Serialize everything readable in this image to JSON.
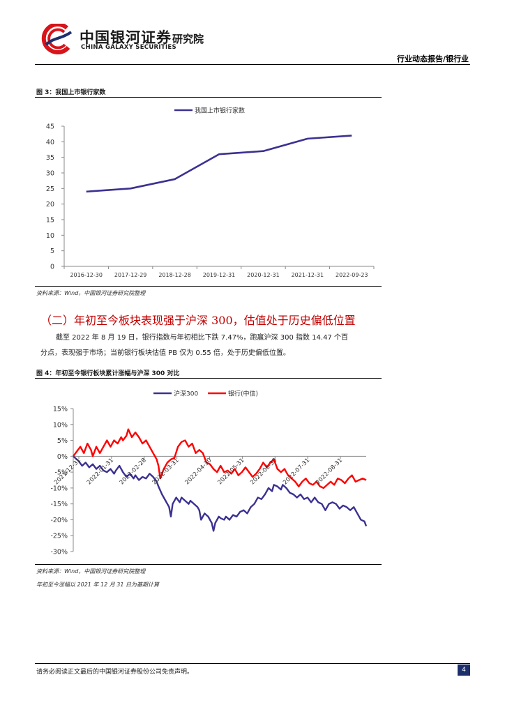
{
  "header": {
    "company_cn": "中国银河证券",
    "company_en": "CHINA GALAXY SECURITIES",
    "institute": "研究院",
    "report_type": "行业动态报告/银行业"
  },
  "figure3": {
    "title": "图 3：我国上市银行家数",
    "source": "资料来源：Wind，中国银河证券研究院整理"
  },
  "section": {
    "heading": "（二）年初至今板块表现强于沪深 300，估值处于历史偏低位置",
    "paragraph_line1": "截至 2022 年 8 月 19 日，银行指数与年初相比下跌 7.47%，跑赢沪深 300 指数 14.47 个百",
    "paragraph_line2": "分点，表现强于市场；当前银行板块估值 PB 仅为 0.55 倍，处于历史偏低位置。"
  },
  "figure4": {
    "title": "图 4：年初至今银行板块累计涨幅与沪深 300 对比",
    "source": "资料来源：Wind，中国银河证券研究院整理",
    "note": "年初至今涨幅以 2021 年 12 月 31 日为基期计算"
  },
  "footer": {
    "disclaimer": "请务必阅读正文最后的中国银河证券股份公司免责声明。",
    "page": "4"
  },
  "colors": {
    "navy": "#3b3191",
    "red": "#ff0000",
    "heading_red": "#c00000"
  },
  "chart_data": [
    {
      "type": "line",
      "title": "",
      "x": [
        "2016-12-30",
        "2017-12-29",
        "2018-12-28",
        "2019-12-31",
        "2020-12-31",
        "2021-12-31",
        "2022-09-23"
      ],
      "series": [
        {
          "name": "我国上市银行家数",
          "values": [
            24,
            25,
            28,
            36,
            37,
            41,
            42
          ],
          "color": "#3b3191"
        }
      ],
      "yticks": [
        "45",
        "40",
        "35",
        "30",
        "25",
        "20",
        "15",
        "10",
        "5",
        "0"
      ],
      "ylim": [
        0,
        45
      ],
      "grid": false,
      "legend": "top-center"
    },
    {
      "type": "line",
      "title": "",
      "xticks": [
        "2021-12-31",
        "2022-01-31",
        "2022-02-28",
        "2022-03-31",
        "2022-04-30",
        "2022-05-31",
        "2022-06-30",
        "2022-07-31",
        "2022-08-31"
      ],
      "yticks": [
        "15%",
        "10%",
        "5%",
        "0%",
        "-5%",
        "-10%",
        "-15%",
        "-20%",
        "-25%",
        "-30%"
      ],
      "ylim": [
        -30,
        15
      ],
      "grid": false,
      "legend": "top-center",
      "series": [
        {
          "name": "沪深300",
          "color": "#3b3191",
          "points": [
            [
              0,
              0
            ],
            [
              3,
              -1.5
            ],
            [
              5,
              -3
            ],
            [
              7,
              -2
            ],
            [
              9,
              -3.5
            ],
            [
              11,
              -2.5
            ],
            [
              13,
              -4
            ],
            [
              15,
              -3
            ],
            [
              17,
              -4.5
            ],
            [
              19,
              -5
            ],
            [
              21,
              -4
            ],
            [
              23,
              -5.5
            ],
            [
              24,
              -4.5
            ],
            [
              26,
              -3
            ],
            [
              28,
              -5
            ],
            [
              30,
              -6.5
            ],
            [
              32,
              -5.5
            ],
            [
              34,
              -7
            ],
            [
              35,
              -6
            ],
            [
              37,
              -7.5
            ],
            [
              39,
              -6.5
            ],
            [
              41,
              -7
            ],
            [
              43,
              -5.5
            ],
            [
              45,
              -6.5
            ],
            [
              47,
              -8
            ],
            [
              48,
              -9.5
            ],
            [
              50,
              -12
            ],
            [
              52,
              -14
            ],
            [
              54,
              -16
            ],
            [
              55,
              -19
            ],
            [
              56,
              -15
            ],
            [
              58,
              -13
            ],
            [
              60,
              -14.5
            ],
            [
              61,
              -13
            ],
            [
              63,
              -14
            ],
            [
              65,
              -15
            ],
            [
              66,
              -14
            ],
            [
              68,
              -15
            ],
            [
              70,
              -16
            ],
            [
              71,
              -17
            ],
            [
              72,
              -20
            ],
            [
              74,
              -18
            ],
            [
              76,
              -19
            ],
            [
              78,
              -21
            ],
            [
              79,
              -23.5
            ],
            [
              80,
              -21
            ],
            [
              82,
              -19
            ],
            [
              83,
              -19.5
            ],
            [
              85,
              -20
            ],
            [
              86,
              -19
            ],
            [
              88,
              -20
            ],
            [
              90,
              -18.5
            ],
            [
              92,
              -19
            ],
            [
              94,
              -17.5
            ],
            [
              96,
              -17
            ],
            [
              98,
              -18
            ],
            [
              100,
              -16
            ],
            [
              102,
              -15
            ],
            [
              104,
              -13
            ],
            [
              106,
              -13.5
            ],
            [
              108,
              -12
            ],
            [
              110,
              -10
            ],
            [
              112,
              -11
            ],
            [
              113,
              -9
            ],
            [
              115,
              -9.5
            ],
            [
              117,
              -10.5
            ],
            [
              118,
              -9
            ],
            [
              120,
              -10
            ],
            [
              122,
              -11.5
            ],
            [
              124,
              -12
            ],
            [
              126,
              -13
            ],
            [
              128,
              -12
            ],
            [
              130,
              -13.5
            ],
            [
              132,
              -13
            ],
            [
              134,
              -14.5
            ],
            [
              136,
              -13
            ],
            [
              138,
              -14.5
            ],
            [
              140,
              -15
            ],
            [
              142,
              -17
            ],
            [
              144,
              -15
            ],
            [
              146,
              -14.5
            ],
            [
              148,
              -15
            ],
            [
              150,
              -16.5
            ],
            [
              152,
              -15.5
            ],
            [
              154,
              -16
            ],
            [
              156,
              -17
            ],
            [
              158,
              -16
            ],
            [
              160,
              -18
            ],
            [
              162,
              -20
            ],
            [
              164,
              -20.5
            ],
            [
              165,
              -22
            ]
          ]
        },
        {
          "name": "银行(中信)",
          "color": "#ff0000",
          "points": [
            [
              0,
              0
            ],
            [
              2,
              1.5
            ],
            [
              4,
              3
            ],
            [
              6,
              1
            ],
            [
              8,
              4
            ],
            [
              10,
              2
            ],
            [
              11,
              0
            ],
            [
              13,
              3
            ],
            [
              15,
              1
            ],
            [
              17,
              3
            ],
            [
              19,
              5
            ],
            [
              21,
              3
            ],
            [
              23,
              5
            ],
            [
              25,
              4
            ],
            [
              27,
              6
            ],
            [
              28,
              5
            ],
            [
              30,
              6.5
            ],
            [
              31,
              8.5
            ],
            [
              33,
              6
            ],
            [
              35,
              7.5
            ],
            [
              37,
              6
            ],
            [
              39,
              4
            ],
            [
              41,
              5
            ],
            [
              43,
              3
            ],
            [
              45,
              1
            ],
            [
              47,
              -1
            ],
            [
              48,
              -3
            ],
            [
              49,
              -7
            ],
            [
              51,
              -4
            ],
            [
              53,
              -2
            ],
            [
              55,
              -1
            ],
            [
              57,
              -0.5
            ],
            [
              59,
              3
            ],
            [
              61,
              4.5
            ],
            [
              63,
              5
            ],
            [
              65,
              3
            ],
            [
              67,
              4
            ],
            [
              69,
              1
            ],
            [
              71,
              2
            ],
            [
              73,
              1
            ],
            [
              75,
              -2
            ],
            [
              77,
              -2.5
            ],
            [
              79,
              -4
            ],
            [
              81,
              -5
            ],
            [
              83,
              -3
            ],
            [
              85,
              -5
            ],
            [
              87,
              -4.5
            ],
            [
              89,
              -5.5
            ],
            [
              91,
              -4
            ],
            [
              93,
              -6
            ],
            [
              95,
              -5
            ],
            [
              97,
              -3.5
            ],
            [
              99,
              -5
            ],
            [
              101,
              -6.5
            ],
            [
              103,
              -5.5
            ],
            [
              105,
              -4
            ],
            [
              107,
              -2
            ],
            [
              109,
              -3.5
            ],
            [
              111,
              -2
            ],
            [
              113,
              -1
            ],
            [
              115,
              -4
            ],
            [
              117,
              -5
            ],
            [
              119,
              -4
            ],
            [
              121,
              -6
            ],
            [
              123,
              -7
            ],
            [
              125,
              -8
            ],
            [
              127,
              -9.5
            ],
            [
              129,
              -8
            ],
            [
              131,
              -7
            ],
            [
              133,
              -8.5
            ],
            [
              135,
              -9
            ],
            [
              137,
              -8
            ],
            [
              139,
              -9.5
            ],
            [
              141,
              -10
            ],
            [
              143,
              -9
            ],
            [
              145,
              -8
            ],
            [
              147,
              -9
            ],
            [
              149,
              -7
            ],
            [
              151,
              -7.5
            ],
            [
              153,
              -8.5
            ],
            [
              155,
              -7
            ],
            [
              157,
              -6
            ],
            [
              159,
              -8
            ],
            [
              161,
              -7.5
            ],
            [
              163,
              -7
            ],
            [
              165,
              -7.5
            ]
          ]
        }
      ]
    }
  ]
}
